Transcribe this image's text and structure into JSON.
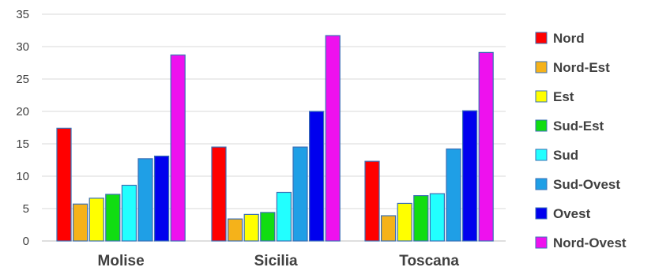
{
  "chart_data": {
    "type": "bar",
    "title": "",
    "xlabel": "",
    "ylabel": "",
    "ylim": [
      0,
      35
    ],
    "yticks": [
      0,
      5,
      10,
      15,
      20,
      25,
      30,
      35
    ],
    "grid": "horizontal",
    "legend_position": "right",
    "categories": [
      "Molise",
      "Sicilia",
      "Toscana"
    ],
    "series": [
      {
        "name": "Nord",
        "color": "#ff0000",
        "values": [
          17.4,
          14.5,
          12.3
        ]
      },
      {
        "name": "Nord-Est",
        "color": "#f5b21a",
        "values": [
          5.7,
          3.4,
          3.9
        ]
      },
      {
        "name": "Est",
        "color": "#ffff00",
        "values": [
          6.6,
          4.1,
          5.8
        ]
      },
      {
        "name": "Sud-Est",
        "color": "#11dd11",
        "values": [
          7.2,
          4.4,
          7.0
        ]
      },
      {
        "name": "Sud",
        "color": "#22ffff",
        "values": [
          8.6,
          7.5,
          7.3
        ]
      },
      {
        "name": "Sud-Ovest",
        "color": "#1f9fe6",
        "values": [
          12.7,
          14.5,
          14.2
        ]
      },
      {
        "name": "Ovest",
        "color": "#0000ee",
        "values": [
          13.1,
          20.0,
          20.1
        ]
      },
      {
        "name": "Nord-Ovest",
        "color": "#ee11ee",
        "values": [
          28.7,
          31.7,
          29.1
        ]
      }
    ]
  }
}
